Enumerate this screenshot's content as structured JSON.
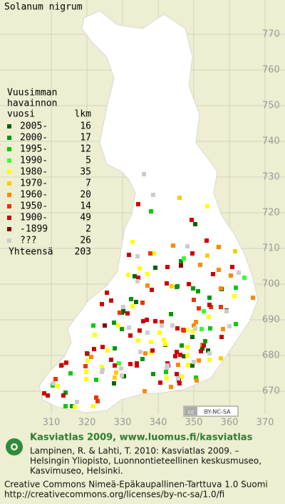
{
  "title": "Solanum nigrum",
  "legend": {
    "heading": [
      "Vuusimman",
      "havainnon",
      "vuosi"
    ],
    "count_heading": "lkm",
    "rows": [
      {
        "label": "2005-",
        "count": 16,
        "color": "#006600"
      },
      {
        "label": "2000-",
        "count": 17,
        "color": "#009900"
      },
      {
        "label": "1995-",
        "count": 12,
        "color": "#00cc00"
      },
      {
        "label": "1990-",
        "count": 5,
        "color": "#33ff33"
      },
      {
        "label": "1980-",
        "count": 35,
        "color": "#ffff00"
      },
      {
        "label": "1970-",
        "count": 7,
        "color": "#ffcc00"
      },
      {
        "label": "1960-",
        "count": 20,
        "color": "#ff8800"
      },
      {
        "label": "1950-",
        "count": 14,
        "color": "#ee3300"
      },
      {
        "label": "1900-",
        "count": 49,
        "color": "#cc0000"
      },
      {
        "label": "-1899",
        "count": 2,
        "color": "#880000"
      },
      {
        "label": "???",
        "count": 26,
        "color": "#cccccc"
      }
    ],
    "total_label": "Yhteensä",
    "total": 203
  },
  "grid": {
    "northing": [
      770,
      760,
      750,
      740,
      730,
      720,
      710,
      700,
      690,
      680,
      670
    ],
    "easting": [
      310,
      320,
      330,
      340,
      350,
      360,
      370
    ]
  },
  "footer": {
    "badge_cc": "cc",
    "badge": "BY-NC-SA",
    "brand": "Kasviatlas 2009, www.luomus.fi/kasviatlas",
    "citation": [
      "Lampinen, R. & Lahti, T. 2010: Kasviatlas 2009. –",
      "Helsingin Yliopisto, Luonnontieteellinen keskusmuseo,",
      "Kasvimuseo, Helsinki."
    ],
    "license": [
      "Creative Commons Nimeä-Epäkaupallinen-Tarttuva 1.0 Suomi",
      "http://creativecommons.org/licenses/by-nc-sa/1.0/fi"
    ]
  }
}
